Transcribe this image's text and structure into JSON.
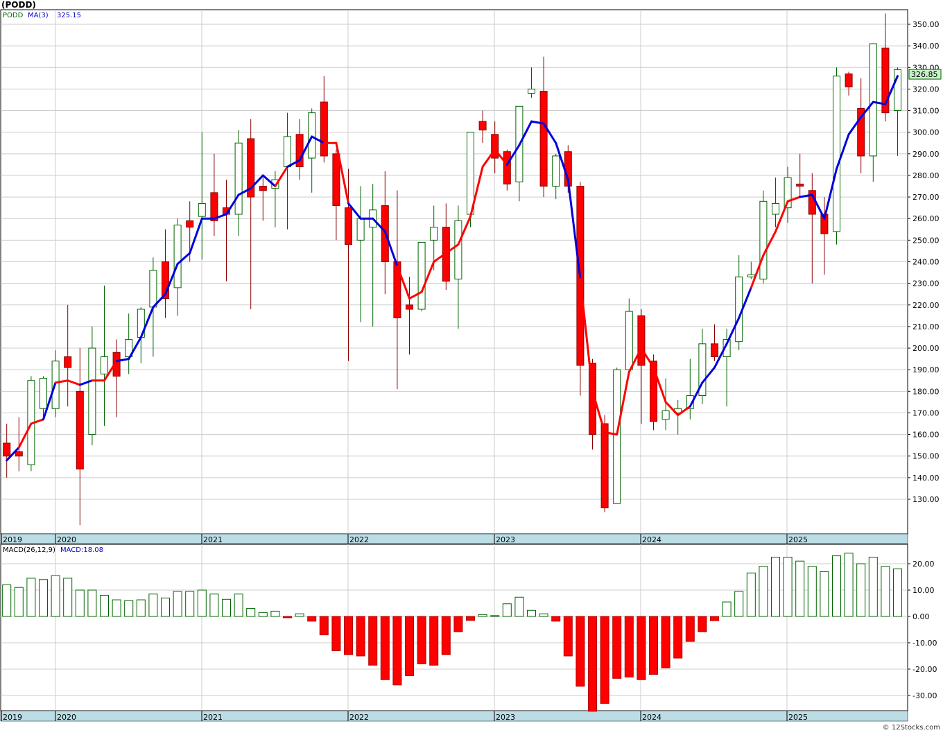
{
  "title": "(PODD)",
  "credit": "© 12Stocks.com",
  "colors": {
    "up": "#006400",
    "down": "#ff0000",
    "ma_up": "#0000dd",
    "ma_down": "#ff0000",
    "grid": "#cccccc",
    "axis_band": "#bcdde6",
    "last_price_box": "#c8f0c8"
  },
  "chart_data": [
    {
      "type": "candlestick",
      "period": "monthly",
      "legend": {
        "symbol": "PODD",
        "ma_label": "MA(3)",
        "ma_value": "325.15"
      },
      "last_price_label": "326.85",
      "ylim": [
        120,
        355
      ],
      "y_ticks": [
        "130.00",
        "140.00",
        "150.00",
        "160.00",
        "170.00",
        "180.00",
        "190.00",
        "200.00",
        "210.00",
        "220.00",
        "230.00",
        "240.00",
        "250.00",
        "260.00",
        "270.00",
        "280.00",
        "290.00",
        "300.00",
        "310.00",
        "320.00",
        "330.00",
        "340.00",
        "350.00"
      ],
      "x_labels": [
        "2019",
        "2020",
        "2021",
        "2022",
        "2023",
        "2024",
        "2025"
      ],
      "candles": [
        [
          156,
          165,
          150,
          140
        ],
        [
          152,
          168,
          150,
          143
        ],
        [
          146,
          187,
          185,
          143
        ],
        [
          172,
          187,
          186,
          167
        ],
        [
          172,
          199,
          194,
          168
        ],
        [
          196,
          220,
          191,
          173
        ],
        [
          180,
          200,
          144,
          118
        ],
        [
          160,
          210,
          200,
          155
        ],
        [
          188,
          229,
          196,
          164
        ],
        [
          198,
          204,
          187,
          168
        ],
        [
          196,
          216,
          204,
          188
        ],
        [
          205,
          219,
          218,
          193
        ],
        [
          219,
          242,
          236,
          196
        ],
        [
          240,
          255,
          223,
          214
        ],
        [
          228,
          260,
          257,
          215
        ],
        [
          259,
          268,
          256,
          240
        ],
        [
          261,
          300,
          267,
          241
        ],
        [
          272,
          290,
          259,
          252
        ],
        [
          265,
          278,
          262,
          231
        ],
        [
          262,
          301,
          295,
          252
        ],
        [
          297,
          306,
          270,
          218
        ],
        [
          275,
          279,
          273,
          259
        ],
        [
          274,
          282,
          278,
          256
        ],
        [
          284,
          309,
          298,
          255
        ],
        [
          299,
          306,
          284,
          278
        ],
        [
          288,
          311,
          309,
          272
        ],
        [
          314,
          326,
          289,
          286
        ],
        [
          290,
          292,
          266,
          250
        ],
        [
          265,
          283,
          248,
          194
        ],
        [
          250,
          275,
          260,
          212
        ],
        [
          256,
          276,
          264,
          210
        ],
        [
          266,
          282,
          240,
          225
        ],
        [
          240,
          273,
          214,
          181
        ],
        [
          220,
          233,
          218,
          197
        ],
        [
          218,
          249,
          249,
          217
        ],
        [
          250,
          266,
          256,
          236
        ],
        [
          256,
          267,
          231,
          227
        ],
        [
          232,
          266,
          259,
          209
        ],
        [
          262,
          285,
          300,
          256
        ],
        [
          305,
          310,
          301,
          295
        ],
        [
          299,
          305,
          288,
          281
        ],
        [
          291,
          292,
          276,
          273
        ],
        [
          277,
          299,
          312,
          268
        ],
        [
          318,
          330,
          320,
          316
        ],
        [
          319,
          335,
          275,
          270
        ],
        [
          275,
          290,
          289,
          269
        ],
        [
          291,
          294,
          275,
          272
        ],
        [
          275,
          277,
          192,
          178
        ],
        [
          193,
          195,
          160,
          153
        ],
        [
          165,
          169,
          126,
          124
        ],
        [
          128,
          191,
          190,
          128
        ],
        [
          190,
          223,
          217,
          188
        ],
        [
          215,
          218,
          192,
          165
        ],
        [
          194,
          197,
          166,
          162
        ],
        [
          167,
          186,
          171,
          162
        ],
        [
          170,
          176,
          172,
          160
        ],
        [
          172,
          195,
          178,
          167
        ],
        [
          178,
          209,
          202,
          174
        ],
        [
          202,
          211,
          196,
          194
        ],
        [
          196,
          209,
          204,
          173
        ],
        [
          203,
          243,
          233,
          199
        ],
        [
          233,
          240,
          234,
          232
        ],
        [
          232,
          273,
          268,
          230
        ],
        [
          262,
          279,
          267,
          256
        ],
        [
          265,
          284,
          279,
          258
        ],
        [
          276,
          290,
          275,
          270
        ],
        [
          273,
          281,
          262,
          230
        ],
        [
          262,
          270,
          253,
          234
        ],
        [
          254,
          330,
          326,
          248
        ],
        [
          327,
          328,
          321,
          317
        ],
        [
          311,
          325,
          289,
          281
        ],
        [
          289,
          341,
          341,
          277
        ],
        [
          339,
          355,
          309,
          305
        ],
        [
          310,
          330,
          329,
          289
        ]
      ],
      "ma3": [
        148,
        154,
        165,
        167,
        184,
        185,
        183,
        185,
        185,
        194,
        195,
        205,
        219,
        225,
        239,
        244,
        260,
        260,
        262,
        271,
        274,
        280,
        275,
        284,
        287,
        298,
        295,
        295,
        267,
        260,
        260,
        254,
        238,
        223,
        226,
        240,
        244,
        248,
        261,
        284,
        292,
        285,
        294,
        305,
        304,
        295,
        278,
        232,
        180,
        161,
        160,
        189,
        200,
        191,
        175,
        169,
        173,
        184,
        191,
        202,
        214,
        228,
        243,
        254,
        268,
        270,
        271,
        260,
        283,
        299,
        307,
        314,
        313,
        326
      ],
      "ma3_colors": "dudduddudduuuuuuuuuuuuuduuudduuuuddddddddduuuuuuddddddddduuuuudddduuuuuuuuuuuuuduuuuuuuddduu"
    },
    {
      "type": "bar",
      "name": "MACD(26,12,9)",
      "legend": {
        "label": "MACD(26,12,9)",
        "value_label": "MACD:18.08"
      },
      "ylim": [
        -37,
        26
      ],
      "y_ticks": [
        "20.00",
        "10.00",
        "0.00",
        "-10.00",
        "-20.00",
        "-30.00"
      ],
      "x_labels": [
        "2019",
        "2020",
        "2021",
        "2022",
        "2023",
        "2024",
        "2025"
      ],
      "values": [
        12,
        11,
        14.5,
        14,
        15.5,
        14.5,
        10,
        10,
        8,
        6.3,
        6,
        6.3,
        8.5,
        7,
        9.5,
        9.5,
        10,
        8.5,
        6.5,
        8.5,
        3,
        1.5,
        2,
        -0.5,
        1,
        -1.8,
        -7,
        -13,
        -14.5,
        -15,
        -18.5,
        -24,
        -26,
        -22.5,
        -18,
        -18.5,
        -14.5,
        -5.8,
        -1.5,
        0.7,
        0.3,
        4.8,
        7.3,
        2.3,
        1,
        -1.8,
        -15,
        -26.5,
        -36,
        -33,
        -23.5,
        -23,
        -24,
        -22,
        -19.5,
        -15.8,
        -9.5,
        -5.8,
        -1.6,
        5.5,
        9.5,
        16.5,
        19,
        22.5,
        22.5,
        21,
        19,
        17,
        23,
        24,
        20,
        22.5,
        19,
        18.08
      ]
    }
  ]
}
